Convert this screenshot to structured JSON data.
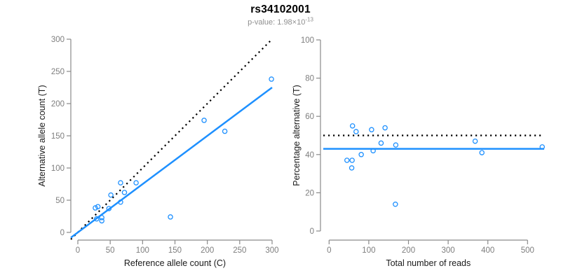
{
  "header": {
    "title": "rs34102001",
    "pvalue_prefix": "p-value: 1.98×10",
    "pvalue_exponent": "-13"
  },
  "colors": {
    "accent_blue": "#1E90FF",
    "line_black": "#000000",
    "axis_gray": "#8a8a8a",
    "tick_text_gray": "#7e7e7e",
    "axis_title_color": "#1a1a1a",
    "subtitle_gray": "#8f8f8f",
    "background": "#ffffff"
  },
  "chart_data": [
    {
      "id": "allele-counts",
      "type": "scatter",
      "title": "",
      "xlabel": "Reference allele count (C)",
      "ylabel": "Alternative allele count (T)",
      "xlim": [
        0,
        300
      ],
      "ylim": [
        0,
        300
      ],
      "xticks": [
        0,
        50,
        100,
        150,
        200,
        250,
        300
      ],
      "yticks": [
        0,
        50,
        100,
        150,
        200,
        250,
        300
      ],
      "grid": false,
      "legend": null,
      "point_style": {
        "shape": "open-circle",
        "color": "#1E90FF"
      },
      "points": [
        [
          299,
          238
        ],
        [
          227,
          157
        ],
        [
          195,
          174
        ],
        [
          143,
          24
        ],
        [
          90,
          77
        ],
        [
          66,
          77
        ],
        [
          72,
          62
        ],
        [
          66,
          47
        ],
        [
          51,
          58
        ],
        [
          48,
          37
        ],
        [
          31,
          40
        ],
        [
          27,
          38
        ],
        [
          29,
          21
        ],
        [
          37,
          23
        ],
        [
          37,
          18
        ]
      ],
      "lines": [
        {
          "name": "expected-1to1-line",
          "style": "dotted",
          "color": "#000000",
          "slope": 1,
          "intercept": 0
        },
        {
          "name": "fitted-ratio-line",
          "style": "solid",
          "color": "#1E90FF",
          "slope": 0.75,
          "intercept": 0
        }
      ]
    },
    {
      "id": "percentage-vs-reads",
      "type": "scatter",
      "title": "",
      "xlabel": "Total number of reads",
      "ylabel": "Percentage alternative (T)",
      "xlim": [
        0,
        540
      ],
      "ylim": [
        0,
        100
      ],
      "xticks": [
        0,
        100,
        200,
        300,
        400,
        500
      ],
      "yticks": [
        0,
        20,
        40,
        60,
        80,
        100
      ],
      "grid": false,
      "legend": null,
      "point_style": {
        "shape": "open-circle",
        "color": "#1E90FF"
      },
      "points": [
        [
          537,
          44
        ],
        [
          368,
          47
        ],
        [
          385,
          41
        ],
        [
          167,
          14
        ],
        [
          168,
          45
        ],
        [
          141,
          54
        ],
        [
          131,
          46
        ],
        [
          107,
          53
        ],
        [
          111,
          42
        ],
        [
          81,
          40
        ],
        [
          59,
          55
        ],
        [
          68,
          52
        ],
        [
          45,
          37
        ],
        [
          58,
          37
        ],
        [
          57,
          33
        ]
      ],
      "lines": [
        {
          "name": "expected-50pct-line",
          "style": "dotted",
          "color": "#000000",
          "y": 50
        },
        {
          "name": "fitted-mean-line",
          "style": "solid",
          "color": "#1E90FF",
          "y": 43
        }
      ]
    }
  ]
}
